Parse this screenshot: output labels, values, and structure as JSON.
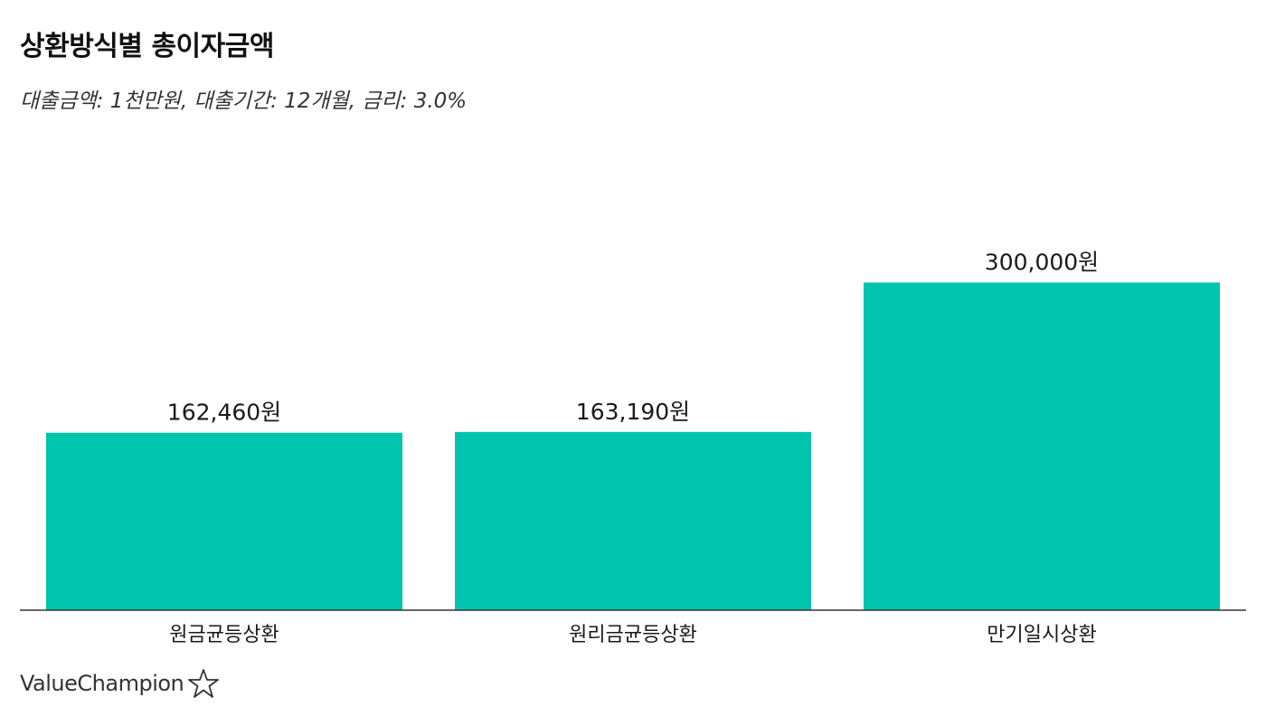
{
  "title": "상환방식별 총이자금액",
  "subtitle": "대출금액: 1천만원, 대출기간: 12개월, 금리: 3.0%",
  "brand": "ValueChampion",
  "colors": {
    "bar": "#00C4AE",
    "axis": "#333333"
  },
  "chart_data": {
    "type": "bar",
    "categories": [
      "원금균등상환",
      "원리금균등상환",
      "만기일시상환"
    ],
    "values": [
      162460,
      163190,
      300000
    ],
    "data_labels": [
      "162,460원",
      "163,190원",
      "300,000원"
    ],
    "ylim": [
      0,
      360000
    ],
    "grid": false,
    "legend": "none"
  }
}
